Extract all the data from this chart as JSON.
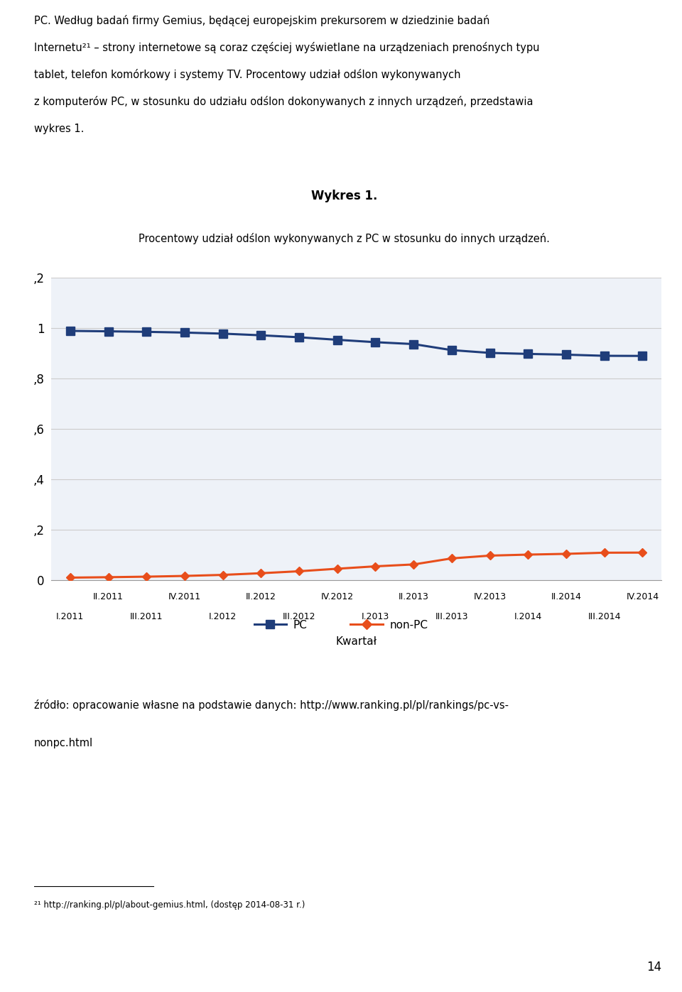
{
  "title": "Wykres 1.",
  "subtitle": "Procentowy udział odślon wykonywanych z PC w stosunku do innych urządzeń.",
  "xlabel": "Kwartał",
  "pc_values": [
    0.9893,
    0.9876,
    0.9855,
    0.9826,
    0.9784,
    0.9718,
    0.964,
    0.954,
    0.9445,
    0.937,
    0.913,
    0.902,
    0.898,
    0.895,
    0.8905,
    0.89
  ],
  "nonpc_values": [
    0.0107,
    0.0124,
    0.0145,
    0.0174,
    0.0216,
    0.0282,
    0.036,
    0.046,
    0.0555,
    0.063,
    0.087,
    0.098,
    0.102,
    0.105,
    0.1095,
    0.11
  ],
  "x_labels_top": [
    "II.2011",
    "IV.2011",
    "II.2012",
    "IV.2012",
    "II.2013",
    "IV.2013",
    "II.2014",
    "IV.2014"
  ],
  "x_labels_bottom": [
    "I.2011",
    "III.2011",
    "I.2012",
    "III.2012",
    "I.2013",
    "III.2013",
    "I.2014",
    "III.2014"
  ],
  "top_positions": [
    1,
    3,
    5,
    7,
    9,
    11,
    13,
    15
  ],
  "bottom_positions": [
    0,
    2,
    4,
    6,
    8,
    10,
    12,
    14
  ],
  "pc_color": "#1f3d7a",
  "nonpc_color": "#e84e1b",
  "ylim": [
    0,
    1.2
  ],
  "yticks": [
    0,
    0.2,
    0.4,
    0.6,
    0.8,
    1.0,
    1.2
  ],
  "ytick_labels": [
    "0",
    ",2",
    ",4",
    ",6",
    ",8",
    "1",
    ",2"
  ],
  "background_color": "#ffffff",
  "grid_color": "#cccccc",
  "chart_bg": "#eef2f8",
  "body_text_line1": "PC. Według badań firmy Gemius, będącej europejskim prekursorem w dziedzinie badań",
  "body_text_line2": "Internetu²¹ – strony internetowe są coraz częściej wyświetlane na urządzeniach prenośnych typu",
  "body_text_line3": "tablet, telefon komórkowy i systemy TV. Procentowy udział odślon wykonywanych",
  "body_text_line4": "z komputerów PC, w stosunku do udziału odślon dokonywanych z innych urządzeń, przedstawia",
  "body_text_line5": "wykres 1.",
  "source_line1": "źródło: opracowanie własne na podstawie danych: http://www.ranking.pl/pl/rankings/pc-vs-",
  "source_line2": "nonpc.html",
  "footnote": "²¹ http://ranking.pl/pl/about-gemius.html, (dostęp 2014-08-31 r.)",
  "page_number": "14"
}
